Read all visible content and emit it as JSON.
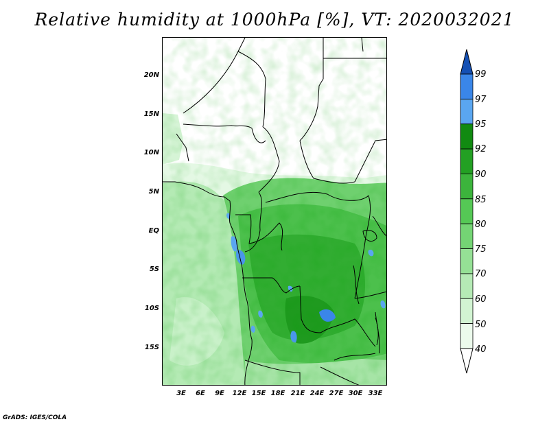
{
  "title": "Relative humidity at 1000hPa [%], VT: 2020032021",
  "credit": "GrADS: IGES/COLA",
  "lat_labels": [
    "20N",
    "15N",
    "10N",
    "5N",
    "EQ",
    "5S",
    "10S",
    "15S"
  ],
  "lat_values": [
    20,
    15,
    10,
    5,
    0,
    -5,
    -10,
    -15
  ],
  "lon_labels": [
    "3E",
    "6E",
    "9E",
    "12E",
    "15E",
    "18E",
    "21E",
    "24E",
    "27E",
    "30E",
    "33E"
  ],
  "lon_values": [
    3,
    6,
    9,
    12,
    15,
    18,
    21,
    24,
    27,
    30,
    33
  ],
  "extent": {
    "lon_min": 0,
    "lon_max": 34.8,
    "lat_min": -20,
    "lat_max": 25
  },
  "colorbar": {
    "labels": [
      "99",
      "97",
      "95",
      "92",
      "90",
      "85",
      "80",
      "75",
      "70",
      "60",
      "50",
      "40"
    ],
    "colors": [
      "#1c5fd6",
      "#3a86e8",
      "#5aa6f0",
      "#118a11",
      "#23a023",
      "#3cb43c",
      "#55c855",
      "#74d474",
      "#95e095",
      "#b5eab5",
      "#d2f4d2",
      "#ecfbec"
    ],
    "top_color": "#1450b4",
    "bottom_color": "#ffffff"
  }
}
